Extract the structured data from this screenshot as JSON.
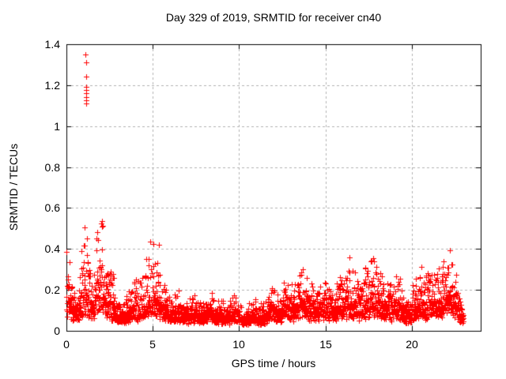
{
  "chart_data": {
    "type": "scatter",
    "title": "Day 329 of 2019, SRMTID for receiver cn40",
    "xlabel": "GPS time / hours",
    "ylabel": "SRMTID / TECUs",
    "xlim": [
      0,
      24
    ],
    "ylim": [
      0,
      1.4
    ],
    "xticks": {
      "values": [
        0,
        5,
        10,
        15,
        20
      ],
      "labels": [
        "0",
        "5",
        "10",
        "15",
        "20"
      ]
    },
    "yticks": {
      "values": [
        0,
        0.2,
        0.4,
        0.6,
        0.8,
        1.0,
        1.2,
        1.4
      ],
      "labels": [
        "0",
        "0.2",
        "0.4",
        "0.6",
        "0.8",
        "1",
        "1.2",
        "1.4"
      ]
    },
    "grid": true,
    "marker": "plus",
    "colors": {
      "points": "#ff0000",
      "grid": "#b0b0b0",
      "axis": "#000000",
      "text": "#000000",
      "background": "#ffffff"
    },
    "sampling": {
      "t_start": 0,
      "t_end": 23,
      "interval_hours": 0.0083333,
      "seed": 329
    },
    "envelope_format": [
      "hour",
      "baseline_TECU",
      "max_TECU"
    ],
    "envelope": [
      [
        0.0,
        0.12,
        0.42
      ],
      [
        0.15,
        0.1,
        0.34
      ],
      [
        0.3,
        0.09,
        0.24
      ],
      [
        0.5,
        0.08,
        0.16
      ],
      [
        0.7,
        0.08,
        0.2
      ],
      [
        0.9,
        0.11,
        0.42
      ],
      [
        1.05,
        0.13,
        0.6
      ],
      [
        1.15,
        0.14,
        0.64
      ],
      [
        1.3,
        0.11,
        0.42
      ],
      [
        1.5,
        0.09,
        0.24
      ],
      [
        1.7,
        0.12,
        0.45
      ],
      [
        1.9,
        0.17,
        0.63
      ],
      [
        2.05,
        0.18,
        0.65
      ],
      [
        2.2,
        0.13,
        0.5
      ],
      [
        2.35,
        0.1,
        0.32
      ],
      [
        2.55,
        0.09,
        0.28
      ],
      [
        2.65,
        0.09,
        0.4
      ],
      [
        2.8,
        0.08,
        0.24
      ],
      [
        3.0,
        0.06,
        0.15
      ],
      [
        3.2,
        0.06,
        0.13
      ],
      [
        3.5,
        0.07,
        0.2
      ],
      [
        3.7,
        0.08,
        0.24
      ],
      [
        3.9,
        0.09,
        0.3
      ],
      [
        4.1,
        0.08,
        0.24
      ],
      [
        4.35,
        0.08,
        0.3
      ],
      [
        4.6,
        0.09,
        0.36
      ],
      [
        4.85,
        0.11,
        0.48
      ],
      [
        5.05,
        0.12,
        0.53
      ],
      [
        5.25,
        0.11,
        0.47
      ],
      [
        5.45,
        0.1,
        0.44
      ],
      [
        5.65,
        0.09,
        0.32
      ],
      [
        5.85,
        0.07,
        0.2
      ],
      [
        6.1,
        0.07,
        0.16
      ],
      [
        6.4,
        0.08,
        0.22
      ],
      [
        6.7,
        0.06,
        0.15
      ],
      [
        7.0,
        0.06,
        0.14
      ],
      [
        7.35,
        0.07,
        0.18
      ],
      [
        7.7,
        0.06,
        0.14
      ],
      [
        8.1,
        0.07,
        0.17
      ],
      [
        8.3,
        0.08,
        0.2
      ],
      [
        8.6,
        0.06,
        0.15
      ],
      [
        9.0,
        0.06,
        0.14
      ],
      [
        9.35,
        0.05,
        0.12
      ],
      [
        9.8,
        0.07,
        0.22
      ],
      [
        10.1,
        0.05,
        0.11
      ],
      [
        10.45,
        0.04,
        0.1
      ],
      [
        10.8,
        0.06,
        0.2
      ],
      [
        11.1,
        0.05,
        0.12
      ],
      [
        11.45,
        0.05,
        0.13
      ],
      [
        11.9,
        0.08,
        0.22
      ],
      [
        12.2,
        0.07,
        0.18
      ],
      [
        12.55,
        0.08,
        0.22
      ],
      [
        12.85,
        0.09,
        0.28
      ],
      [
        13.1,
        0.08,
        0.22
      ],
      [
        13.45,
        0.1,
        0.28
      ],
      [
        13.8,
        0.11,
        0.33
      ],
      [
        14.1,
        0.09,
        0.26
      ],
      [
        14.5,
        0.08,
        0.19
      ],
      [
        14.95,
        0.1,
        0.28
      ],
      [
        15.35,
        0.08,
        0.2
      ],
      [
        15.75,
        0.09,
        0.23
      ],
      [
        16.05,
        0.09,
        0.26
      ],
      [
        16.5,
        0.11,
        0.37
      ],
      [
        16.85,
        0.09,
        0.26
      ],
      [
        17.15,
        0.09,
        0.24
      ],
      [
        17.5,
        0.11,
        0.34
      ],
      [
        17.8,
        0.12,
        0.42
      ],
      [
        18.1,
        0.1,
        0.3
      ],
      [
        18.4,
        0.1,
        0.3
      ],
      [
        18.7,
        0.08,
        0.23
      ],
      [
        19.0,
        0.09,
        0.26
      ],
      [
        19.25,
        0.1,
        0.3
      ],
      [
        19.6,
        0.07,
        0.16
      ],
      [
        19.9,
        0.06,
        0.15
      ],
      [
        20.2,
        0.09,
        0.26
      ],
      [
        20.45,
        0.1,
        0.3
      ],
      [
        20.7,
        0.09,
        0.27
      ],
      [
        21.0,
        0.11,
        0.33
      ],
      [
        21.2,
        0.11,
        0.36
      ],
      [
        21.5,
        0.1,
        0.29
      ],
      [
        21.8,
        0.11,
        0.34
      ],
      [
        22.1,
        0.13,
        0.4
      ],
      [
        22.3,
        0.12,
        0.38
      ],
      [
        22.55,
        0.1,
        0.3
      ],
      [
        22.8,
        0.07,
        0.18
      ],
      [
        23.0,
        0.04,
        0.08
      ]
    ],
    "outliers": [
      [
        1.12,
        1.35
      ],
      [
        1.13,
        1.31
      ],
      [
        1.14,
        1.24
      ],
      [
        1.13,
        1.19
      ],
      [
        1.14,
        1.175
      ],
      [
        1.14,
        1.16
      ],
      [
        1.135,
        1.14
      ],
      [
        1.14,
        1.125
      ],
      [
        1.13,
        1.11
      ]
    ]
  }
}
